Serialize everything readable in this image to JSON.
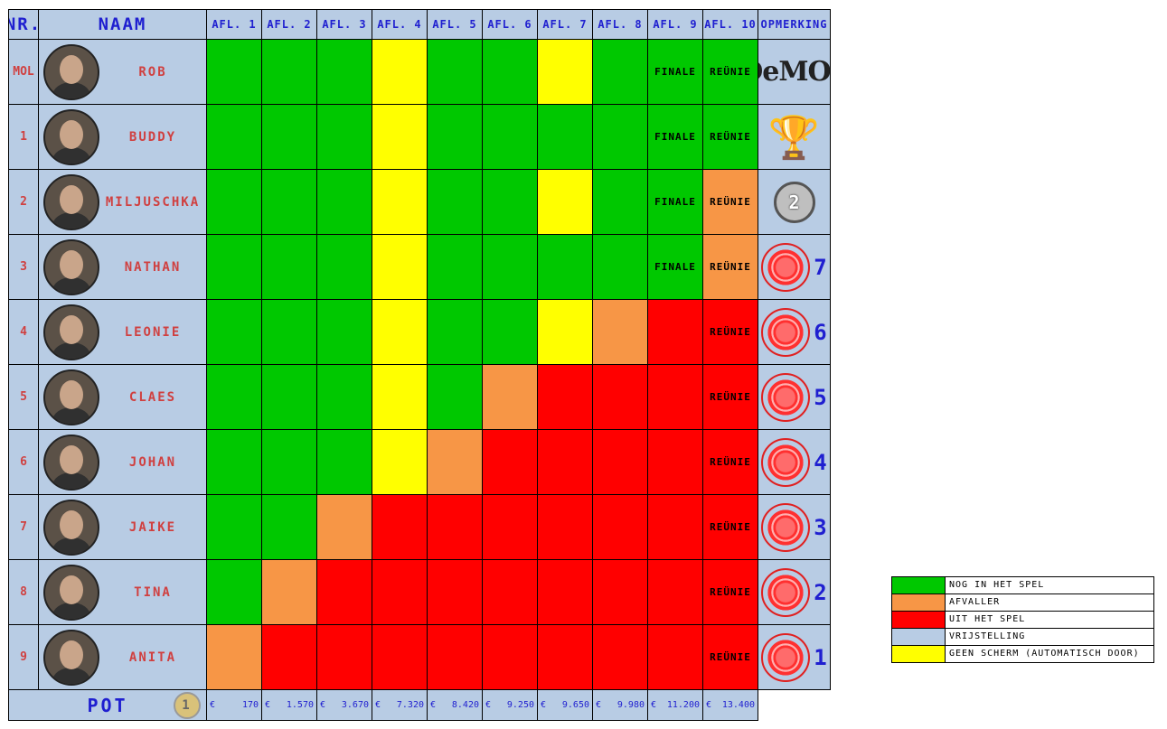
{
  "headers": {
    "nr": "NR.",
    "naam": "NAAM",
    "episodes": [
      "AFL. 1",
      "AFL. 2",
      "AFL. 3",
      "AFL. 4",
      "AFL. 5",
      "AFL. 6",
      "AFL. 7",
      "AFL. 8",
      "AFL. 9",
      "AFL. 10"
    ],
    "opmerking": "OPMERKING"
  },
  "colors": {
    "green": "#00c800",
    "orange": "#f79646",
    "red": "#ff0000",
    "blue": "#b8cce4",
    "yellow": "#ffff00"
  },
  "rows": [
    {
      "nr": "MOL",
      "name": "ROB",
      "cells": [
        "g",
        "g",
        "g",
        "y",
        "g",
        "g",
        "y",
        "g",
        "g:FINALE",
        "g:REÜNIE"
      ],
      "remark": "logo",
      "logo_text": "DeMOL"
    },
    {
      "nr": "1",
      "name": "BUDDY",
      "cells": [
        "g",
        "g",
        "g",
        "y",
        "g",
        "g",
        "g",
        "g",
        "g:FINALE",
        "g:REÜNIE"
      ],
      "remark": "trophy"
    },
    {
      "nr": "2",
      "name": "MILJUSCHKA",
      "cells": [
        "g",
        "g",
        "g",
        "y",
        "g",
        "g",
        "y",
        "g",
        "g:FINALE",
        "o:REÜNIE"
      ],
      "remark": "medal",
      "medal_text": "2"
    },
    {
      "nr": "3",
      "name": "NATHAN",
      "cells": [
        "g",
        "g",
        "g",
        "y",
        "g",
        "g",
        "g",
        "g",
        "g:FINALE",
        "o:REÜNIE"
      ],
      "remark": "fp",
      "rank": "7"
    },
    {
      "nr": "4",
      "name": "LEONIE",
      "cells": [
        "g",
        "g",
        "g",
        "y",
        "g",
        "g",
        "y",
        "o",
        "r",
        "r:REÜNIE"
      ],
      "remark": "fp",
      "rank": "6"
    },
    {
      "nr": "5",
      "name": "CLAES",
      "cells": [
        "g",
        "g",
        "g",
        "y",
        "g",
        "o",
        "r",
        "r",
        "r",
        "r:REÜNIE"
      ],
      "remark": "fp",
      "rank": "5"
    },
    {
      "nr": "6",
      "name": "JOHAN",
      "cells": [
        "g",
        "g",
        "g",
        "y",
        "o",
        "r",
        "r",
        "r",
        "r",
        "r:REÜNIE"
      ],
      "remark": "fp",
      "rank": "4"
    },
    {
      "nr": "7",
      "name": "JAIKE",
      "cells": [
        "g",
        "g",
        "o",
        "r",
        "r",
        "r",
        "r",
        "r",
        "r",
        "r:REÜNIE"
      ],
      "remark": "fp",
      "rank": "3"
    },
    {
      "nr": "8",
      "name": "TINA",
      "cells": [
        "g",
        "o",
        "r",
        "r",
        "r",
        "r",
        "r",
        "r",
        "r",
        "r:REÜNIE"
      ],
      "remark": "fp",
      "rank": "2"
    },
    {
      "nr": "9",
      "name": "ANITA",
      "cells": [
        "o",
        "r",
        "r",
        "r",
        "r",
        "r",
        "r",
        "r",
        "r",
        "r:REÜNIE"
      ],
      "remark": "fp",
      "rank": "1"
    }
  ],
  "pot": {
    "label": "POT",
    "coin_text": "1",
    "currency": "€",
    "values": [
      "170",
      "1.570",
      "3.670",
      "7.320",
      "8.420",
      "9.250",
      "9.650",
      "9.980",
      "11.200",
      "13.400"
    ]
  },
  "legend": [
    {
      "color": "#00c800",
      "label": "NOG IN HET SPEL"
    },
    {
      "color": "#f79646",
      "label": "AFVALLER"
    },
    {
      "color": "#ff0000",
      "label": "UIT HET SPEL"
    },
    {
      "color": "#b8cce4",
      "label": "VRIJSTELLING"
    },
    {
      "color": "#ffff00",
      "label": "GEEN SCHERM (AUTOMATISCH DOOR)"
    }
  ]
}
